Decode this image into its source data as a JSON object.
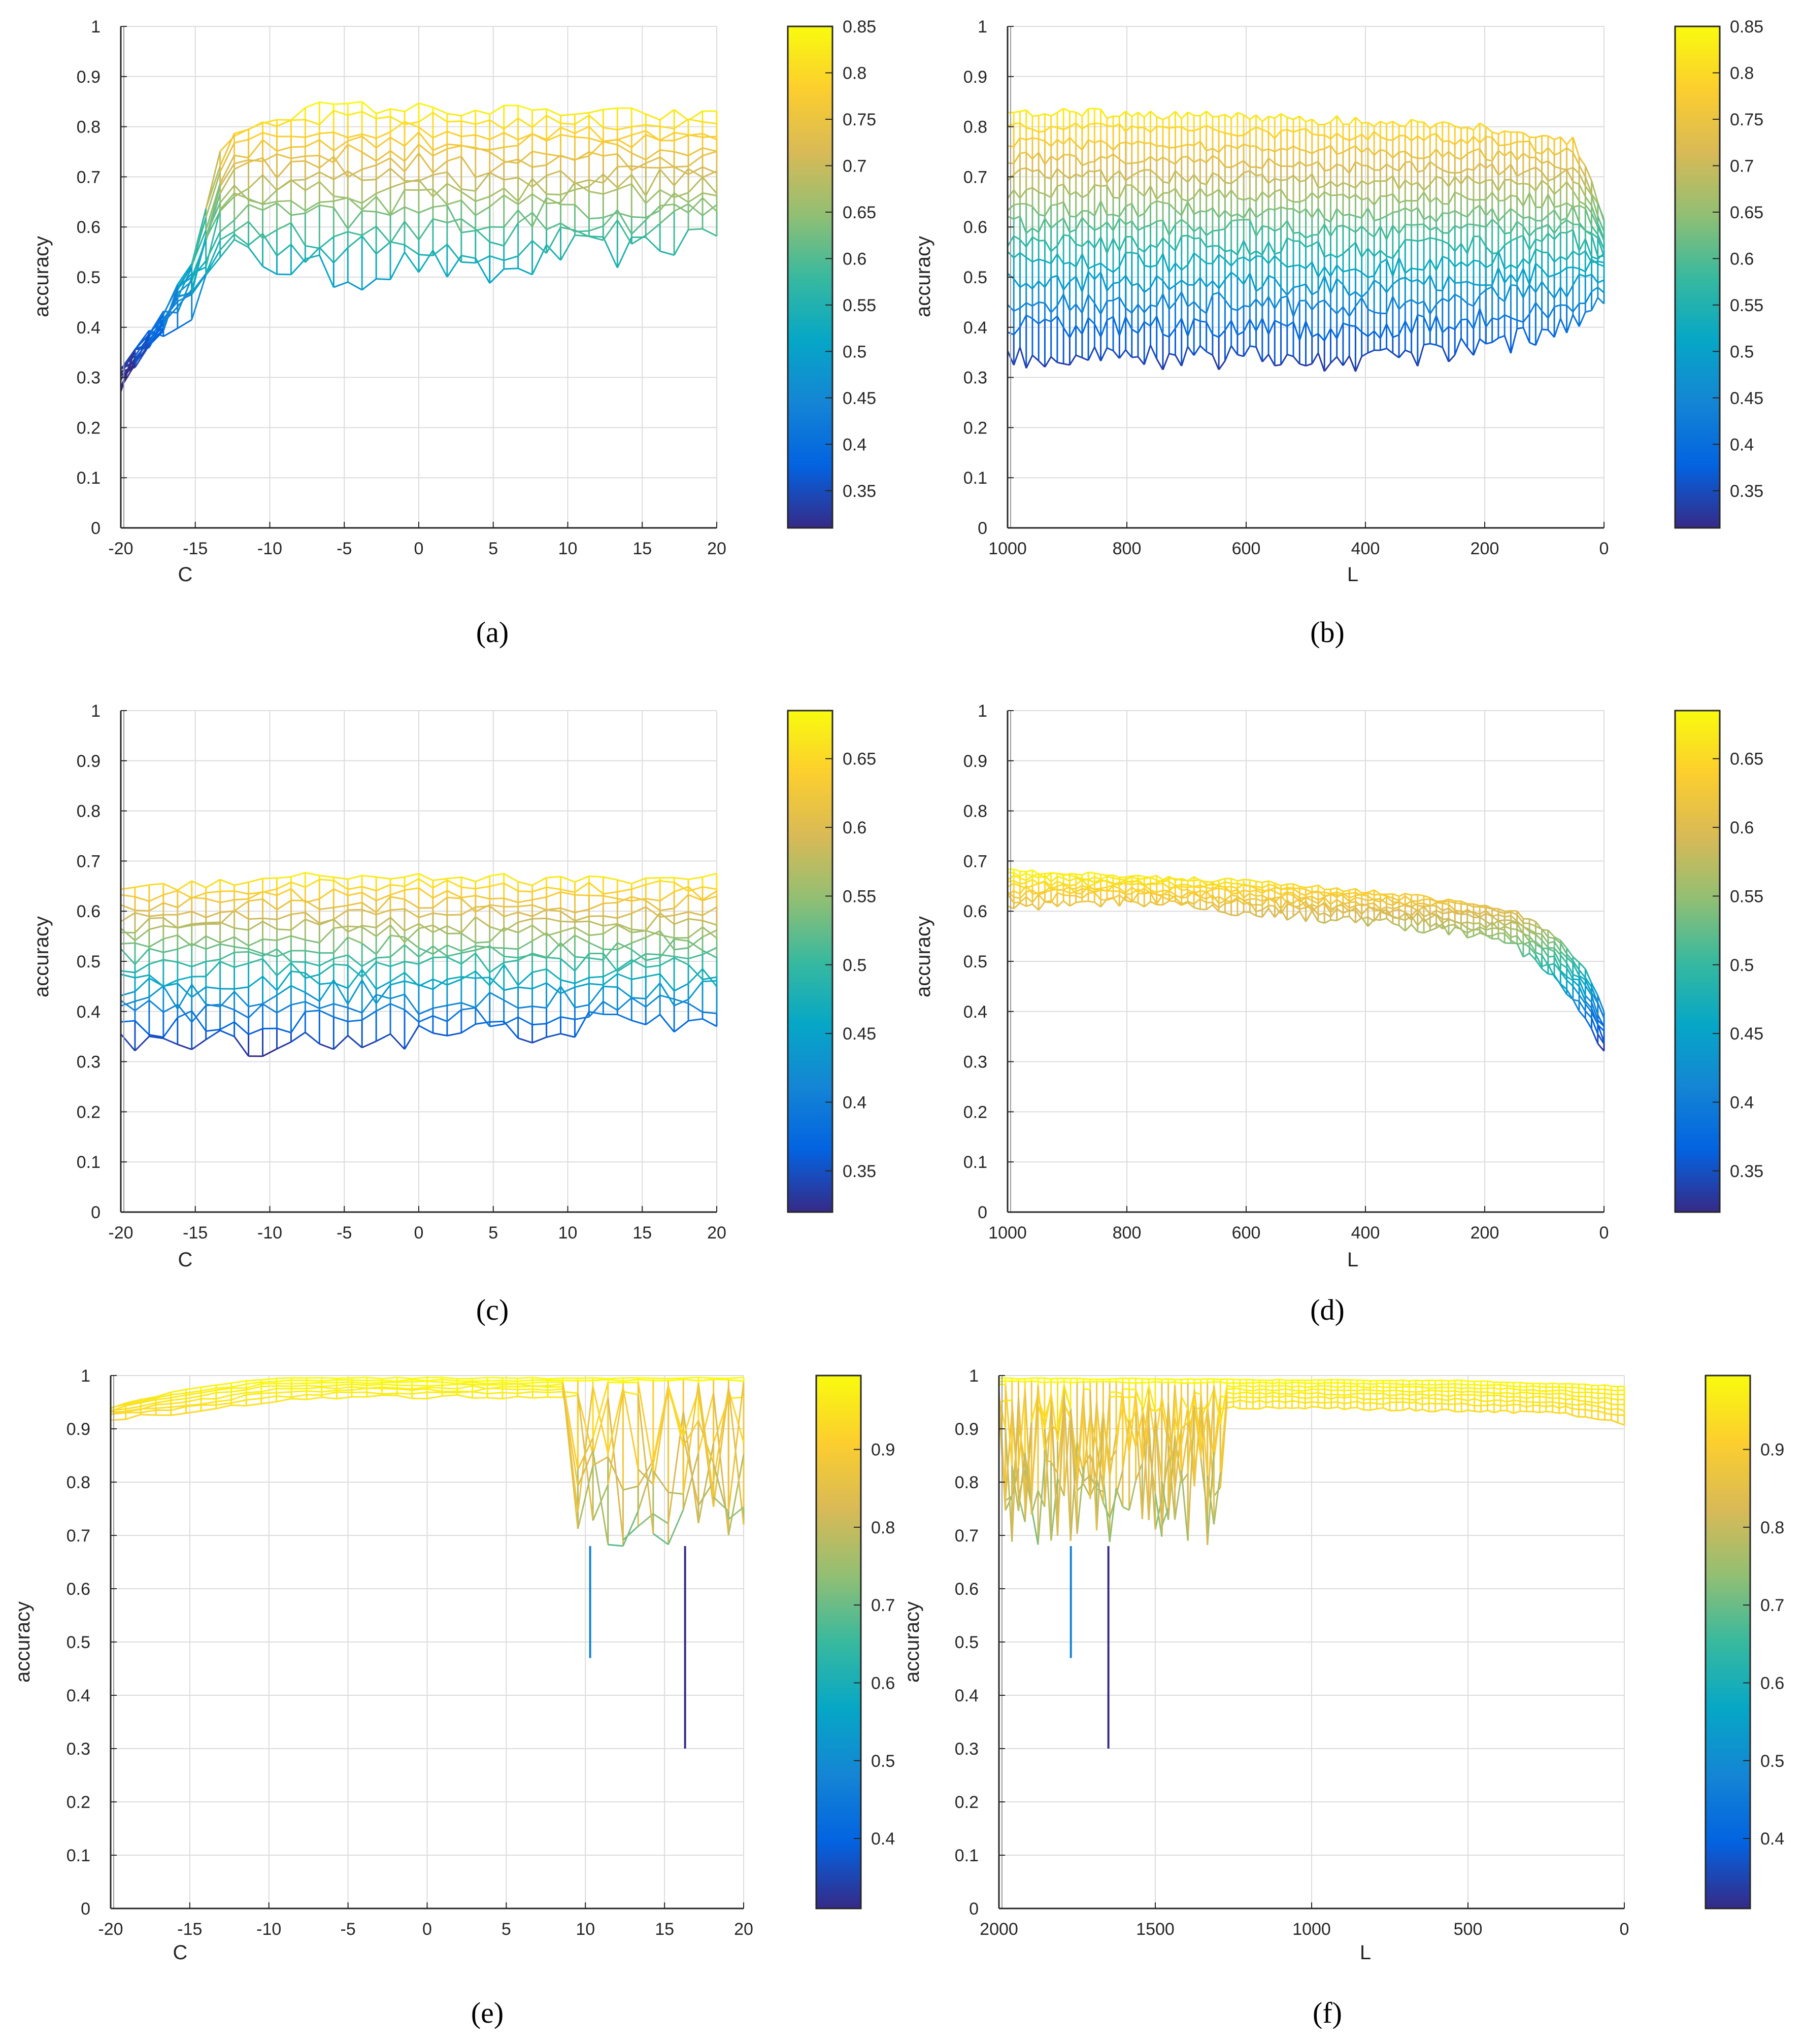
{
  "chart_data": [
    {
      "id": "a",
      "type": "mesh",
      "caption": "(a)",
      "xlabel": "C",
      "ylabel": "accuracy",
      "xlim": [
        -20,
        20
      ],
      "x_reversed": false,
      "xticks": [
        -20,
        -15,
        -10,
        -5,
        0,
        5,
        10,
        15,
        20
      ],
      "xtick_labels": [
        "-20",
        "-15",
        "-10",
        "-5",
        "0",
        "5",
        "10",
        "15",
        "20"
      ],
      "ylim": [
        0,
        1
      ],
      "yticks": [
        "0",
        "0.1",
        "0.2",
        "0.3",
        "0.4",
        "0.5",
        "0.6",
        "0.7",
        "0.8",
        "0.9",
        "1"
      ],
      "colorbar": {
        "range": [
          0.31,
          0.85
        ],
        "ticks": [
          "0.35",
          "0.4",
          "0.45",
          "0.5",
          "0.55",
          "0.6",
          "0.65",
          "0.7",
          "0.75",
          "0.8",
          "0.85"
        ]
      },
      "surface": {
        "profile": [
          [
            -20,
            0.3
          ],
          [
            -17,
            0.42
          ],
          [
            -15,
            0.55
          ],
          [
            -13,
            0.78
          ],
          [
            -10,
            0.82
          ],
          [
            -6,
            0.84
          ],
          [
            20,
            0.82
          ]
        ],
        "low_profile": [
          [
            -20,
            0.3
          ],
          [
            -17,
            0.42
          ],
          [
            -15,
            0.45
          ],
          [
            -13,
            0.55
          ],
          [
            -10,
            0.53
          ],
          [
            -5,
            0.5
          ],
          [
            0,
            0.53
          ],
          [
            5,
            0.5
          ],
          [
            10,
            0.55
          ],
          [
            15,
            0.55
          ],
          [
            20,
            0.6
          ]
        ],
        "noise": 0.035,
        "levels": 13,
        "columns": 42
      }
    },
    {
      "id": "b",
      "type": "mesh",
      "caption": "(b)",
      "xlabel": "L",
      "ylabel": "accuracy",
      "xlim": [
        0,
        1000
      ],
      "x_reversed": true,
      "xticks": [
        1000,
        800,
        600,
        400,
        200,
        0
      ],
      "xtick_labels": [
        "1000",
        "800",
        "600",
        "400",
        "200",
        "0"
      ],
      "ylim": [
        0,
        1
      ],
      "yticks": [
        "0",
        "0.1",
        "0.2",
        "0.3",
        "0.4",
        "0.5",
        "0.6",
        "0.7",
        "0.8",
        "0.9",
        "1"
      ],
      "colorbar": {
        "range": [
          0.31,
          0.85
        ],
        "ticks": [
          "0.35",
          "0.4",
          "0.45",
          "0.5",
          "0.55",
          "0.6",
          "0.65",
          "0.7",
          "0.75",
          "0.8",
          "0.85"
        ]
      },
      "surface": {
        "profile": [
          [
            1000,
            0.83
          ],
          [
            600,
            0.82
          ],
          [
            200,
            0.8
          ],
          [
            50,
            0.77
          ],
          [
            0,
            0.62
          ]
        ],
        "low_profile": [
          [
            1000,
            0.34
          ],
          [
            600,
            0.34
          ],
          [
            400,
            0.33
          ],
          [
            200,
            0.36
          ],
          [
            60,
            0.4
          ],
          [
            0,
            0.46
          ]
        ],
        "noise": 0.025,
        "levels": 14,
        "columns": 96
      }
    },
    {
      "id": "c",
      "type": "mesh",
      "caption": "(c)",
      "xlabel": "C",
      "ylabel": "accuracy",
      "xlim": [
        -20,
        20
      ],
      "x_reversed": false,
      "xticks": [
        -20,
        -15,
        -10,
        -5,
        0,
        5,
        10,
        15,
        20
      ],
      "xtick_labels": [
        "-20",
        "-15",
        "-10",
        "-5",
        "0",
        "5",
        "10",
        "15",
        "20"
      ],
      "ylim": [
        0,
        1
      ],
      "yticks": [
        "0",
        "0.1",
        "0.2",
        "0.3",
        "0.4",
        "0.5",
        "0.6",
        "0.7",
        "0.8",
        "0.9",
        "1"
      ],
      "colorbar": {
        "range": [
          0.32,
          0.685
        ],
        "ticks": [
          "0.35",
          "0.4",
          "0.45",
          "0.5",
          "0.55",
          "0.6",
          "0.65"
        ]
      },
      "surface": {
        "profile": [
          [
            -20,
            0.64
          ],
          [
            -10,
            0.67
          ],
          [
            0,
            0.67
          ],
          [
            10,
            0.66
          ],
          [
            20,
            0.67
          ]
        ],
        "low_profile": [
          [
            -20,
            0.33
          ],
          [
            -10,
            0.34
          ],
          [
            0,
            0.35
          ],
          [
            10,
            0.37
          ],
          [
            20,
            0.38
          ]
        ],
        "noise": 0.03,
        "levels": 15,
        "columns": 42
      }
    },
    {
      "id": "d",
      "type": "mesh",
      "caption": "(d)",
      "xlabel": "L",
      "ylabel": "accuracy",
      "xlim": [
        0,
        1000
      ],
      "x_reversed": true,
      "xticks": [
        1000,
        800,
        600,
        400,
        200,
        0
      ],
      "xtick_labels": [
        "1000",
        "800",
        "600",
        "400",
        "200",
        "0"
      ],
      "ylim": [
        0,
        1
      ],
      "yticks": [
        "0",
        "0.1",
        "0.2",
        "0.3",
        "0.4",
        "0.5",
        "0.6",
        "0.7",
        "0.8",
        "0.9",
        "1"
      ],
      "colorbar": {
        "range": [
          0.32,
          0.685
        ],
        "ticks": [
          "0.35",
          "0.4",
          "0.45",
          "0.5",
          "0.55",
          "0.6",
          "0.65"
        ]
      },
      "surface": {
        "profile": [
          [
            1000,
            0.68
          ],
          [
            800,
            0.67
          ],
          [
            600,
            0.66
          ],
          [
            400,
            0.64
          ],
          [
            250,
            0.62
          ],
          [
            150,
            0.6
          ],
          [
            80,
            0.55
          ],
          [
            30,
            0.48
          ],
          [
            0,
            0.4
          ]
        ],
        "low_profile": [
          [
            1000,
            0.61
          ],
          [
            800,
            0.62
          ],
          [
            600,
            0.6
          ],
          [
            400,
            0.58
          ],
          [
            250,
            0.56
          ],
          [
            150,
            0.53
          ],
          [
            80,
            0.46
          ],
          [
            30,
            0.38
          ],
          [
            0,
            0.32
          ]
        ],
        "noise": 0.012,
        "levels": 9,
        "columns": 96
      }
    },
    {
      "id": "e",
      "type": "mesh",
      "caption": "(e)",
      "xlabel": "C",
      "ylabel": "accuracy",
      "xlim": [
        -20,
        20
      ],
      "x_reversed": false,
      "xticks": [
        -20,
        -15,
        -10,
        -5,
        0,
        5,
        10,
        15,
        20
      ],
      "xtick_labels": [
        "-20",
        "-15",
        "-10",
        "-5",
        "0",
        "5",
        "10",
        "15",
        "20"
      ],
      "ylim": [
        0,
        1
      ],
      "yticks": [
        "0",
        "0.1",
        "0.2",
        "0.3",
        "0.4",
        "0.5",
        "0.6",
        "0.7",
        "0.8",
        "0.9",
        "1"
      ],
      "colorbar": {
        "range": [
          0.31,
          0.995
        ],
        "ticks": [
          "0.4",
          "0.5",
          "0.6",
          "0.7",
          "0.8",
          "0.9"
        ]
      },
      "surface": {
        "profile": [
          [
            -20,
            0.94
          ],
          [
            -16,
            0.97
          ],
          [
            -10,
            0.995
          ],
          [
            20,
            0.995
          ]
        ],
        "low_profile": [
          [
            -20,
            0.92
          ],
          [
            -15,
            0.93
          ],
          [
            -10,
            0.95
          ],
          [
            -5,
            0.96
          ],
          [
            8,
            0.96
          ],
          [
            20,
            0.96
          ]
        ],
        "noise": 0.004,
        "levels": 8,
        "columns": 42
      },
      "drop_region": [
        9,
        20
      ],
      "drop_floor": 0.68,
      "spikes": [
        [
          10.3,
          0.47
        ],
        [
          16.3,
          0.3
        ]
      ]
    },
    {
      "id": "f",
      "type": "mesh",
      "caption": "(f)",
      "xlabel": "L",
      "ylabel": "accuracy",
      "xlim": [
        0,
        2000
      ],
      "x_reversed": true,
      "xticks": [
        2000,
        1500,
        1000,
        500,
        0
      ],
      "xtick_labels": [
        "2000",
        "1500",
        "1000",
        "500",
        "0"
      ],
      "ylim": [
        0,
        1
      ],
      "yticks": [
        "0",
        "0.1",
        "0.2",
        "0.3",
        "0.4",
        "0.5",
        "0.6",
        "0.7",
        "0.8",
        "0.9",
        "1"
      ],
      "colorbar": {
        "range": [
          0.31,
          0.995
        ],
        "ticks": [
          "0.4",
          "0.5",
          "0.6",
          "0.7",
          "0.8",
          "0.9"
        ]
      },
      "surface": {
        "profile": [
          [
            2000,
            0.995
          ],
          [
            500,
            0.99
          ],
          [
            0,
            0.98
          ]
        ],
        "low_profile": [
          [
            2000,
            0.94
          ],
          [
            1000,
            0.94
          ],
          [
            200,
            0.93
          ],
          [
            0,
            0.91
          ]
        ],
        "noise": 0.003,
        "levels": 8,
        "columns": 96
      },
      "drop_region": [
        1280,
        1990
      ],
      "drop_floor": 0.68,
      "spikes": [
        [
          1770,
          0.47
        ],
        [
          1650,
          0.3
        ]
      ]
    }
  ]
}
